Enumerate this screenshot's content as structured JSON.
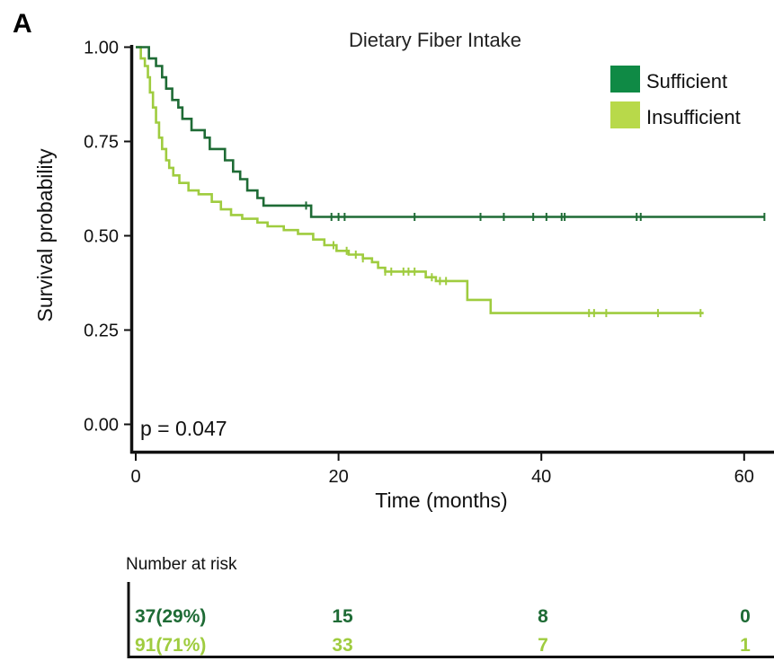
{
  "panel_label": "A",
  "chart_data": {
    "type": "line",
    "subtype": "kaplan-meier",
    "title": "Dietary Fiber Intake",
    "xlabel": "Time (months)",
    "ylabel": "Survival probability",
    "xlim": [
      0,
      62
    ],
    "ylim": [
      0,
      1
    ],
    "xticks": [
      "0",
      "20",
      "40",
      "60"
    ],
    "yticks": [
      "0.00",
      "0.25",
      "0.50",
      "0.75",
      "1.00"
    ],
    "legend_position": "top-right",
    "annotation": "p = 0.047",
    "series": [
      {
        "name": "Sufficient",
        "color": "#1e6b35",
        "legend_color": "#0f8a45",
        "steps": [
          [
            0,
            1.0
          ],
          [
            1.3,
            0.97
          ],
          [
            2.0,
            0.95
          ],
          [
            2.6,
            0.92
          ],
          [
            3.0,
            0.89
          ],
          [
            3.6,
            0.86
          ],
          [
            4.2,
            0.84
          ],
          [
            4.6,
            0.81
          ],
          [
            5.5,
            0.78
          ],
          [
            6.8,
            0.76
          ],
          [
            7.3,
            0.73
          ],
          [
            8.8,
            0.7
          ],
          [
            9.6,
            0.67
          ],
          [
            10.3,
            0.65
          ],
          [
            11.0,
            0.62
          ],
          [
            12.0,
            0.6
          ],
          [
            12.6,
            0.58
          ],
          [
            17.3,
            0.55
          ],
          [
            62,
            0.55
          ]
        ],
        "censor_x": [
          16.8,
          19.3,
          20.0,
          20.6,
          27.5,
          34.0,
          36.3,
          39.2,
          40.5,
          42.0,
          42.3,
          49.4,
          49.8,
          62.0
        ]
      },
      {
        "name": "Insufficient",
        "color": "#9fcc3f",
        "legend_color": "#b8d94a",
        "steps": [
          [
            0,
            1.0
          ],
          [
            0.5,
            0.97
          ],
          [
            0.9,
            0.95
          ],
          [
            1.2,
            0.92
          ],
          [
            1.4,
            0.88
          ],
          [
            1.7,
            0.84
          ],
          [
            2.0,
            0.8
          ],
          [
            2.3,
            0.76
          ],
          [
            2.6,
            0.73
          ],
          [
            3.0,
            0.7
          ],
          [
            3.3,
            0.68
          ],
          [
            3.7,
            0.66
          ],
          [
            4.3,
            0.64
          ],
          [
            5.2,
            0.62
          ],
          [
            6.2,
            0.61
          ],
          [
            7.5,
            0.59
          ],
          [
            8.4,
            0.57
          ],
          [
            9.4,
            0.555
          ],
          [
            10.5,
            0.545
          ],
          [
            12.0,
            0.535
          ],
          [
            13.0,
            0.525
          ],
          [
            14.6,
            0.515
          ],
          [
            16.0,
            0.505
          ],
          [
            17.5,
            0.49
          ],
          [
            18.6,
            0.475
          ],
          [
            19.8,
            0.46
          ],
          [
            21.0,
            0.45
          ],
          [
            22.4,
            0.44
          ],
          [
            23.3,
            0.43
          ],
          [
            23.9,
            0.415
          ],
          [
            24.6,
            0.405
          ],
          [
            28.6,
            0.39
          ],
          [
            29.6,
            0.38
          ],
          [
            32.7,
            0.33
          ],
          [
            35.0,
            0.295
          ],
          [
            56.0,
            0.295
          ]
        ],
        "censor_x": [
          19.5,
          20.8,
          21.7,
          22.4,
          24.6,
          25.2,
          26.4,
          26.9,
          27.5,
          29.2,
          30.0,
          30.6,
          44.7,
          45.2,
          46.4,
          51.5,
          55.7
        ]
      }
    ],
    "risk_table": {
      "title": "Number at risk",
      "times": [
        0,
        20,
        40,
        60
      ],
      "rows": [
        {
          "name": "Sufficient",
          "color": "#1e6b35",
          "values": [
            "37(29%)",
            "15",
            "8",
            "0"
          ]
        },
        {
          "name": "Insufficient",
          "color": "#9fcc3f",
          "values": [
            "91(71%)",
            "33",
            "7",
            "1"
          ]
        }
      ]
    }
  }
}
